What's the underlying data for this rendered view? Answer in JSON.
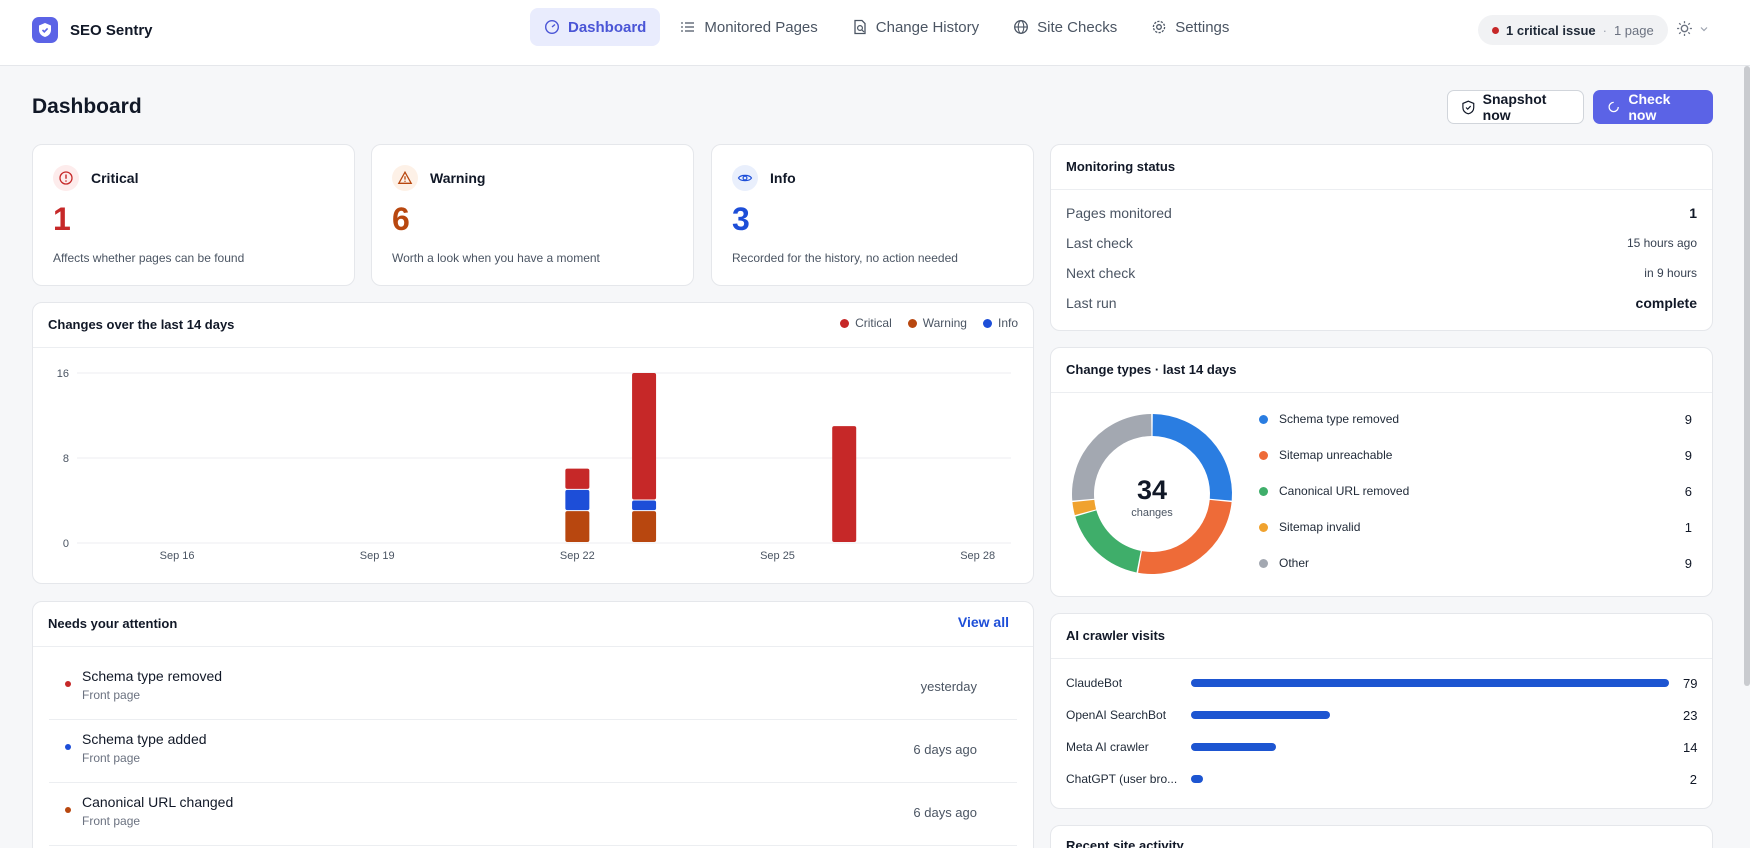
{
  "app": {
    "name": "SEO Sentry"
  },
  "nav": {
    "items": [
      {
        "label": "Dashboard",
        "icon": "gauge-icon",
        "active": true
      },
      {
        "label": "Monitored Pages",
        "icon": "list-icon",
        "active": false
      },
      {
        "label": "Change History",
        "icon": "history-doc-icon",
        "active": false
      },
      {
        "label": "Site Checks",
        "icon": "globe-icon",
        "active": false
      },
      {
        "label": "Settings",
        "icon": "gear-icon",
        "active": false
      }
    ]
  },
  "alert": {
    "issues": "1 critical issue",
    "separator": "·",
    "pages": "1 page"
  },
  "page": {
    "title": "Dashboard",
    "snapshot_label": "Snapshot now",
    "check_label": "Check now"
  },
  "severity": {
    "critical": {
      "label": "Critical",
      "count": "1",
      "desc": "Affects whether pages can be found",
      "color": "#c62828"
    },
    "warning": {
      "label": "Warning",
      "count": "6",
      "desc": "Worth a look when you have a moment",
      "color": "#b8470f"
    },
    "info": {
      "label": "Info",
      "count": "3",
      "desc": "Recorded for the history, no action needed",
      "color": "#1d4ed8"
    }
  },
  "monitoring": {
    "title": "Monitoring status",
    "rows": [
      {
        "label": "Pages monitored",
        "value": "1"
      },
      {
        "label": "Last check",
        "value": "15 hours ago"
      },
      {
        "label": "Next check",
        "value": "in 9 hours"
      },
      {
        "label": "Last run",
        "value": "complete"
      }
    ]
  },
  "changes_chart": {
    "title": "Changes over the last 14 days",
    "legend": [
      {
        "label": "Critical",
        "color": "#c62828"
      },
      {
        "label": "Warning",
        "color": "#b8470f"
      },
      {
        "label": "Info",
        "color": "#1d4ed8"
      }
    ]
  },
  "change_types": {
    "title": "Change types · last 14 days",
    "total": "34",
    "total_label": "changes",
    "items": [
      {
        "label": "Schema type removed",
        "value": "9",
        "color": "#2a7de1"
      },
      {
        "label": "Sitemap unreachable",
        "value": "9",
        "color": "#ee6b38"
      },
      {
        "label": "Canonical URL removed",
        "value": "6",
        "color": "#3fae6a"
      },
      {
        "label": "Sitemap invalid",
        "value": "1",
        "color": "#f0a22e"
      },
      {
        "label": "Other",
        "value": "9",
        "color": "#a3a8b1"
      }
    ]
  },
  "crawlers": {
    "title": "AI crawler visits",
    "items": [
      {
        "label": "ClaudeBot",
        "value": "79"
      },
      {
        "label": "OpenAI SearchBot",
        "value": "23"
      },
      {
        "label": "Meta AI crawler",
        "value": "14"
      },
      {
        "label": "ChatGPT (user bro...",
        "value": "2"
      }
    ]
  },
  "attention": {
    "title": "Needs your attention",
    "view_all": "View all",
    "items": [
      {
        "title": "Schema type removed",
        "page": "Front page",
        "time": "yesterday",
        "color": "#c62828"
      },
      {
        "title": "Schema type added",
        "page": "Front page",
        "time": "6 days ago",
        "color": "#1d4ed8"
      },
      {
        "title": "Canonical URL changed",
        "page": "Front page",
        "time": "6 days ago",
        "color": "#b8470f"
      }
    ]
  },
  "recent_activity": {
    "title": "Recent site activity"
  },
  "chart_data": {
    "type": "bar",
    "stacked": true,
    "x": [
      "Sep 15",
      "Sep 16",
      "Sep 17",
      "Sep 18",
      "Sep 19",
      "Sep 20",
      "Sep 21",
      "Sep 22",
      "Sep 23",
      "Sep 24",
      "Sep 25",
      "Sep 26",
      "Sep 27",
      "Sep 28"
    ],
    "tick_labels": [
      "Sep 16",
      "Sep 19",
      "Sep 22",
      "Sep 25",
      "Sep 28"
    ],
    "y_ticks": [
      "0",
      "8",
      "16"
    ],
    "ylim": [
      0,
      16
    ],
    "grid": true,
    "legend_position": "top-right",
    "series": [
      {
        "name": "Warning",
        "color": "#b8470f",
        "values": [
          0,
          0,
          0,
          0,
          0,
          0,
          0,
          3,
          3,
          0,
          0,
          0,
          0,
          0
        ]
      },
      {
        "name": "Info",
        "color": "#1d4ed8",
        "values": [
          0,
          0,
          0,
          0,
          0,
          0,
          0,
          2,
          1,
          0,
          0,
          0,
          0,
          0
        ]
      },
      {
        "name": "Critical",
        "color": "#c62828",
        "values": [
          0,
          0,
          0,
          0,
          0,
          0,
          0,
          2,
          12,
          0,
          0,
          11,
          0,
          0
        ]
      }
    ]
  }
}
